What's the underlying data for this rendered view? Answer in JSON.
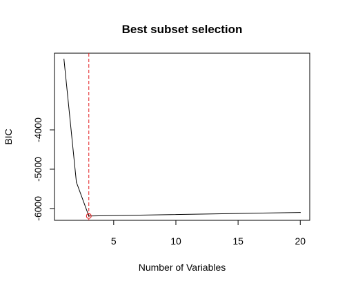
{
  "chart_data": {
    "type": "line",
    "title": "Best subset selection",
    "xlabel": "Number of Variables",
    "ylabel": "BIC",
    "xlim": [
      0.24,
      20.76
    ],
    "ylim": [
      -6300,
      -2050
    ],
    "x_ticks": [
      5,
      10,
      15,
      20
    ],
    "x_tick_labels": [
      "5",
      "10",
      "15",
      "20"
    ],
    "y_ticks": [
      -6000,
      -5000,
      -4000
    ],
    "y_tick_labels": [
      "-6000",
      "-5000",
      "-4000"
    ],
    "grid": false,
    "legend": "none",
    "series": [
      {
        "x": [
          1,
          2,
          3,
          20
        ],
        "y": [
          -2200,
          -5330,
          -6190,
          -6100
        ],
        "color": "#000000"
      }
    ],
    "highlight_point": {
      "x": 3,
      "y": -6190,
      "color": "#e31a1c"
    },
    "vline": {
      "x": 3,
      "color": "#e31a1c",
      "style": "dashed"
    }
  }
}
